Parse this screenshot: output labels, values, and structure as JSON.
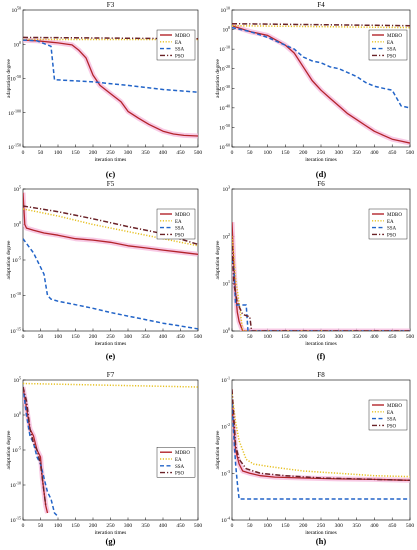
{
  "colors": {
    "MDBO": "#b3242b",
    "EA": "#e6c022",
    "SSA": "#2264c8",
    "PSO": "#6b2328",
    "band": "#f6b8dc"
  },
  "chart_data": [
    {
      "type": "line",
      "panel": "c",
      "title": "F3",
      "caption": "(c)",
      "xlabel": "iteration times",
      "ylabel": "adaptation degree",
      "xlim": [
        0,
        500
      ],
      "ylog": true,
      "yticks": [
        {
          "exp": 50
        },
        {
          "exp": 0
        },
        {
          "exp": -50
        },
        {
          "exp": -100
        },
        {
          "exp": -150
        }
      ],
      "xticks": [
        0,
        50,
        100,
        150,
        200,
        250,
        300,
        350,
        400,
        450,
        500
      ],
      "legend": "top-right",
      "series": [
        {
          "name": "MDBO",
          "style": "solid",
          "x": [
            0,
            40,
            60,
            80,
            100,
            140,
            160,
            180,
            200,
            220,
            250,
            280,
            300,
            330,
            360,
            400,
            430,
            460,
            500
          ],
          "y": [
            6,
            5,
            4,
            3,
            2,
            -1,
            -9,
            -20,
            -45,
            -60,
            -72,
            -84,
            -98,
            -108,
            -117,
            -127,
            -131,
            -133,
            -134
          ]
        },
        {
          "name": "EA",
          "style": "dotted",
          "x": [
            0,
            500
          ],
          "y": [
            7,
            7
          ]
        },
        {
          "name": "SSA",
          "style": "dashed",
          "x": [
            0,
            40,
            80,
            90,
            100,
            200,
            300,
            400,
            500
          ],
          "y": [
            6,
            5,
            -3,
            -52,
            -52,
            -55,
            -60,
            -66,
            -70
          ]
        },
        {
          "name": "PSO",
          "style": "dashdot",
          "x": [
            0,
            500
          ],
          "y": [
            10,
            8
          ]
        }
      ]
    },
    {
      "type": "line",
      "panel": "d",
      "title": "F4",
      "caption": "(d)",
      "xlabel": "iteration times",
      "ylabel": "adaptation degree",
      "xlim": [
        0,
        500
      ],
      "ylog": true,
      "yticks": [
        {
          "exp": 10
        },
        {
          "exp": 0
        },
        {
          "exp": -10
        },
        {
          "exp": -20
        },
        {
          "exp": -30
        },
        {
          "exp": -40
        },
        {
          "exp": -50
        },
        {
          "exp": -60
        }
      ],
      "xticks": [
        0,
        50,
        100,
        150,
        200,
        250,
        300,
        350,
        400,
        450,
        500
      ],
      "legend": "top-right",
      "series": [
        {
          "name": "MDBO",
          "style": "solid",
          "x": [
            0,
            50,
            100,
            150,
            175,
            200,
            225,
            250,
            275,
            300,
            325,
            350,
            375,
            400,
            425,
            450,
            475,
            500
          ],
          "y": [
            2,
            -1,
            -3,
            -8,
            -12,
            -19,
            -26,
            -31,
            -35,
            -39,
            -43,
            -46,
            -49,
            -52,
            -54,
            -56,
            -57,
            -58
          ]
        },
        {
          "name": "EA",
          "style": "dotted",
          "x": [
            0,
            500
          ],
          "y": [
            2,
            1
          ]
        },
        {
          "name": "SSA",
          "style": "dashed",
          "x": [
            0,
            50,
            100,
            150,
            175,
            200,
            225,
            250,
            275,
            300,
            325,
            350,
            375,
            400,
            425,
            450,
            475,
            500
          ],
          "y": [
            1,
            -1,
            -4,
            -8,
            -10,
            -14,
            -16,
            -17,
            -19,
            -20,
            -22,
            -24,
            -27,
            -29,
            -30,
            -31,
            -39,
            -40
          ]
        },
        {
          "name": "PSO",
          "style": "dashdot",
          "x": [
            0,
            500
          ],
          "y": [
            3,
            2
          ]
        }
      ]
    },
    {
      "type": "line",
      "panel": "e",
      "title": "F5",
      "caption": "(e)",
      "xlabel": "iteration times",
      "ylabel": "adaptation degree",
      "xlim": [
        0,
        500
      ],
      "ylog": true,
      "yticks": [
        {
          "exp": 5
        },
        {
          "exp": 0
        },
        {
          "exp": -5
        },
        {
          "exp": -10
        },
        {
          "exp": -15
        }
      ],
      "xticks": [
        0,
        50,
        100,
        150,
        200,
        250,
        300,
        350,
        400,
        450,
        500
      ],
      "legend": "top-right",
      "series": [
        {
          "name": "MDBO",
          "style": "solid",
          "x": [
            0,
            5,
            10,
            30,
            60,
            100,
            150,
            200,
            250,
            300,
            350,
            400,
            450,
            500
          ],
          "y": [
            4.5,
            0,
            -0.5,
            -0.8,
            -1.2,
            -1.5,
            -2,
            -2.2,
            -2.5,
            -3,
            -3.3,
            -3.6,
            -3.9,
            -4.2
          ]
        },
        {
          "name": "EA",
          "style": "dotted",
          "x": [
            0,
            100,
            200,
            300,
            400,
            500
          ],
          "y": [
            2.2,
            1.2,
            0,
            -1,
            -2,
            -3
          ]
        },
        {
          "name": "SSA",
          "style": "dashed",
          "x": [
            0,
            30,
            60,
            70,
            80,
            100,
            150,
            200,
            250,
            300,
            350,
            400,
            450,
            500
          ],
          "y": [
            -2,
            -4,
            -7,
            -10,
            -10.5,
            -10.8,
            -11.3,
            -11.8,
            -12.4,
            -12.9,
            -13.4,
            -13.9,
            -14.3,
            -14.7
          ]
        },
        {
          "name": "PSO",
          "style": "dashdot",
          "x": [
            0,
            100,
            200,
            300,
            400,
            500
          ],
          "y": [
            2.6,
            1.8,
            0.8,
            -0.3,
            -1.3,
            -2.8
          ]
        }
      ]
    },
    {
      "type": "line",
      "panel": "f",
      "title": "F6",
      "caption": "(f)",
      "xlabel": "iteration times",
      "ylabel": "adaptation degree",
      "xlim": [
        0,
        500
      ],
      "ylog": true,
      "yticks": [
        {
          "exp": 3
        },
        {
          "exp": 2
        },
        {
          "exp": 1
        },
        {
          "exp": 0
        }
      ],
      "xticks": [
        0,
        50,
        100,
        150,
        200,
        250,
        300,
        350,
        400,
        450,
        500
      ],
      "legend": "top-right",
      "series": [
        {
          "name": "MDBO",
          "style": "solid",
          "x": [
            0,
            5,
            10,
            15,
            20,
            30,
            500
          ],
          "y": [
            2.3,
            1.4,
            0.8,
            0.4,
            0.2,
            0,
            0
          ]
        },
        {
          "name": "EA",
          "style": "dotted",
          "x": [
            0,
            5,
            10,
            20,
            25,
            30,
            500
          ],
          "y": [
            2.0,
            1.6,
            1.1,
            0.6,
            0.3,
            0,
            0
          ]
        },
        {
          "name": "SSA",
          "style": "dashed",
          "x": [
            0,
            5,
            10,
            15,
            40,
            45,
            500
          ],
          "y": [
            1.5,
            1.3,
            0.55,
            0.55,
            0.55,
            0,
            0
          ]
        },
        {
          "name": "PSO",
          "style": "dashdot",
          "x": [
            0,
            5,
            15,
            30,
            50,
            55,
            500
          ],
          "y": [
            1.8,
            1.0,
            0.6,
            0.35,
            0.3,
            0,
            0
          ]
        }
      ]
    },
    {
      "type": "line",
      "panel": "g",
      "title": "F7",
      "caption": "(g)",
      "xlabel": "iteration times",
      "ylabel": "adaptation degree",
      "xlim": [
        0,
        500
      ],
      "ylog": true,
      "yticks": [
        {
          "exp": 5
        },
        {
          "exp": 0
        },
        {
          "exp": -5
        },
        {
          "exp": -10
        },
        {
          "exp": -15
        }
      ],
      "xticks": [
        0,
        50,
        100,
        150,
        200,
        250,
        300,
        350,
        400,
        450,
        500
      ],
      "legend": "middle-right",
      "series": [
        {
          "name": "MDBO",
          "style": "solid",
          "x": [
            0,
            10,
            20,
            30,
            40,
            50,
            55,
            60,
            65,
            70
          ],
          "y": [
            4,
            1,
            -2,
            -3,
            -5,
            -6,
            -9,
            -11,
            -13,
            -14
          ]
        },
        {
          "name": "EA",
          "style": "dotted",
          "x": [
            0,
            500
          ],
          "y": [
            4.5,
            4
          ]
        },
        {
          "name": "SSA",
          "style": "dashed",
          "x": [
            0,
            10,
            20,
            30,
            40,
            50,
            60,
            70,
            80,
            90,
            100
          ],
          "y": [
            4,
            0,
            -3,
            -4,
            -6,
            -7,
            -9,
            -11,
            -12,
            -14,
            -14.5
          ]
        },
        {
          "name": "PSO",
          "style": "dashdot",
          "x": [
            0,
            10,
            20,
            30,
            40,
            50,
            55,
            60,
            65
          ],
          "y": [
            4,
            2,
            -2,
            -4,
            -5,
            -7,
            -9,
            -11,
            -13
          ]
        }
      ]
    },
    {
      "type": "line",
      "panel": "h",
      "title": "F8",
      "caption": "(h)",
      "xlabel": "iteration times",
      "ylabel": "adaptation degree",
      "xlim": [
        0,
        500
      ],
      "ylog": true,
      "yticks": [
        {
          "exp": -1
        },
        {
          "exp": -2
        },
        {
          "exp": -3
        },
        {
          "exp": -4
        }
      ],
      "xticks": [
        0,
        50,
        100,
        150,
        200,
        250,
        300,
        350,
        400,
        450,
        500
      ],
      "legend": "top-right",
      "series": [
        {
          "name": "MDBO",
          "style": "solid",
          "x": [
            0,
            5,
            10,
            20,
            30,
            50,
            80,
            120,
            200,
            300,
            400,
            500
          ],
          "y": [
            -1.6,
            -2,
            -2.5,
            -2.8,
            -2.95,
            -3.0,
            -3.05,
            -3.08,
            -3.1,
            -3.12,
            -3.13,
            -3.15
          ]
        },
        {
          "name": "EA",
          "style": "dotted",
          "x": [
            0,
            5,
            10,
            20,
            40,
            60,
            100,
            150,
            200,
            300,
            400,
            500
          ],
          "y": [
            -1.3,
            -1.6,
            -1.9,
            -2.3,
            -2.7,
            -2.8,
            -2.85,
            -2.9,
            -2.95,
            -3.0,
            -3.05,
            -3.07
          ]
        },
        {
          "name": "SSA",
          "style": "dashed",
          "x": [
            0,
            5,
            10,
            15,
            20,
            25,
            500
          ],
          "y": [
            -1.5,
            -2.2,
            -2.8,
            -3.2,
            -3.55,
            -3.55,
            -3.55
          ]
        },
        {
          "name": "PSO",
          "style": "dashdot",
          "x": [
            0,
            5,
            10,
            20,
            40,
            80,
            150,
            250,
            350,
            500
          ],
          "y": [
            -1.2,
            -1.8,
            -2.4,
            -2.7,
            -2.9,
            -3.0,
            -3.05,
            -3.1,
            -3.12,
            -3.15
          ]
        }
      ]
    }
  ]
}
